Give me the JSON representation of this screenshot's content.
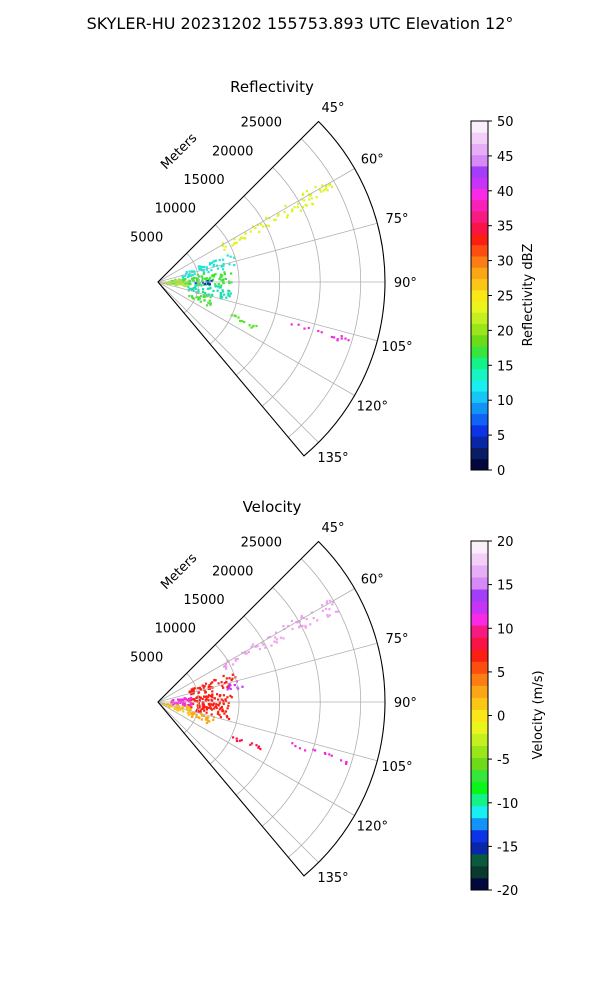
{
  "figure": {
    "title": "SKYLER-HU  20231202  155753.893 UTC Elevation 12°"
  },
  "chart_data": [
    {
      "type": "polar-sector",
      "title": "Reflectivity",
      "range_label": "Meters",
      "range_ticks": [
        5000,
        10000,
        15000,
        20000,
        25000
      ],
      "rmax": 28000,
      "azimuth_range": [
        45,
        140
      ],
      "azimuth_ticks": [
        "45°",
        "60°",
        "75°",
        "90°",
        "105°",
        "120°",
        "135°"
      ],
      "azimuth_tick_values": [
        45,
        60,
        75,
        90,
        105,
        120,
        135
      ],
      "grid": true,
      "colorbar": {
        "label": "Reflectivity dBZ",
        "min": 0,
        "max": 50,
        "ticks": [
          0,
          5,
          10,
          15,
          20,
          25,
          30,
          35,
          40,
          45,
          50
        ],
        "colors": [
          "#02083e",
          "#0a1d63",
          "#0727a8",
          "#0c34e6",
          "#0f63f5",
          "#1493f7",
          "#18c5f7",
          "#19eef0",
          "#17f5c1",
          "#14f28a",
          "#36e63d",
          "#6edb1a",
          "#9ae61b",
          "#c4f01f",
          "#eaf51e",
          "#fbe61a",
          "#fbc717",
          "#fba615",
          "#fb7d13",
          "#fb4e10",
          "#fa1f12",
          "#fa1445",
          "#f71a80",
          "#f821b5",
          "#f82ae6",
          "#c733f7",
          "#a43df7",
          "#d58af8",
          "#e7aef8",
          "#f2d0f8",
          "#fbeefb"
        ]
      },
      "regions": [
        {
          "from_deg": 58,
          "to_deg": 63,
          "r_from": 9000,
          "r_to": 25000,
          "color": "#dcf51e",
          "density": 0.55
        },
        {
          "from_deg": 67,
          "to_deg": 78,
          "r_from": 3000,
          "r_to": 10000,
          "color": "#19e8d8",
          "density": 0.45
        },
        {
          "from_deg": 78,
          "to_deg": 93,
          "r_from": 1500,
          "r_to": 9000,
          "color": "#3ee43a",
          "density": 0.6
        },
        {
          "from_deg": 93,
          "to_deg": 104,
          "r_from": 3500,
          "r_to": 9000,
          "color": "#1adfb0",
          "density": 0.55
        },
        {
          "from_deg": 104,
          "to_deg": 115,
          "r_from": 4000,
          "r_to": 7000,
          "color": "#4fe23a",
          "density": 0.5
        },
        {
          "from_deg": 113,
          "to_deg": 116,
          "r_from": 9500,
          "r_to": 14000,
          "color": "#55e625",
          "density": 0.55
        },
        {
          "from_deg": 106,
          "to_deg": 108,
          "r_from": 17000,
          "r_to": 24500,
          "color": "#f02cdc",
          "density": 0.6
        },
        {
          "from_deg": 82,
          "to_deg": 98,
          "r_from": 500,
          "r_to": 3500,
          "color": "#b4e63a",
          "density": 0.6
        },
        {
          "from_deg": 85,
          "to_deg": 95,
          "r_from": 4500,
          "r_to": 6500,
          "color": "#0a2fd8",
          "density": 0.25
        }
      ]
    },
    {
      "type": "polar-sector",
      "title": "Velocity",
      "range_label": "Meters",
      "range_ticks": [
        5000,
        10000,
        15000,
        20000,
        25000
      ],
      "rmax": 28000,
      "azimuth_range": [
        45,
        140
      ],
      "azimuth_ticks": [
        "45°",
        "60°",
        "75°",
        "90°",
        "105°",
        "120°",
        "135°"
      ],
      "azimuth_tick_values": [
        45,
        60,
        75,
        90,
        105,
        120,
        135
      ],
      "grid": true,
      "colorbar": {
        "label": "Velocity (m/s)",
        "min": -20,
        "max": 20,
        "ticks": [
          -20,
          -15,
          -10,
          -5,
          0,
          5,
          10,
          15,
          20
        ],
        "colors": [
          "#02083e",
          "#0a3a2e",
          "#0a5a40",
          "#0727a8",
          "#0c34e6",
          "#1493f7",
          "#19eef0",
          "#14f28a",
          "#0af51a",
          "#36e63d",
          "#6edb1a",
          "#9ae61b",
          "#c4f01f",
          "#eaf51e",
          "#fbe61a",
          "#fbc717",
          "#fba615",
          "#fb7d13",
          "#fb4e10",
          "#fa1f12",
          "#fa1445",
          "#f71a80",
          "#f82ae6",
          "#c733f7",
          "#a43df7",
          "#d58af8",
          "#e7aef8",
          "#f2d0f8",
          "#fbeefb"
        ]
      },
      "regions": [
        {
          "from_deg": 58,
          "to_deg": 63,
          "r_from": 9000,
          "r_to": 25000,
          "color": "#f0a0f0",
          "density": 0.55
        },
        {
          "from_deg": 67,
          "to_deg": 78,
          "r_from": 4000,
          "r_to": 10000,
          "color": "#fa1f12",
          "density": 0.6
        },
        {
          "from_deg": 74,
          "to_deg": 80,
          "r_from": 8500,
          "r_to": 10500,
          "color": "#c733f7",
          "density": 0.5
        },
        {
          "from_deg": 80,
          "to_deg": 103,
          "r_from": 3500,
          "r_to": 9000,
          "color": "#fa1f12",
          "density": 0.65
        },
        {
          "from_deg": 78,
          "to_deg": 98,
          "r_from": 1500,
          "r_to": 4000,
          "color": "#f82ae6",
          "density": 0.55
        },
        {
          "from_deg": 95,
          "to_deg": 112,
          "r_from": 500,
          "r_to": 4000,
          "color": "#fbc717",
          "density": 0.55
        },
        {
          "from_deg": 104,
          "to_deg": 114,
          "r_from": 4000,
          "r_to": 7000,
          "color": "#fba615",
          "density": 0.55
        },
        {
          "from_deg": 113,
          "to_deg": 116,
          "r_from": 9500,
          "r_to": 14000,
          "color": "#fa1445",
          "density": 0.5
        },
        {
          "from_deg": 106,
          "to_deg": 108,
          "r_from": 17000,
          "r_to": 24500,
          "color": "#f02cdc",
          "density": 0.6
        }
      ]
    }
  ]
}
